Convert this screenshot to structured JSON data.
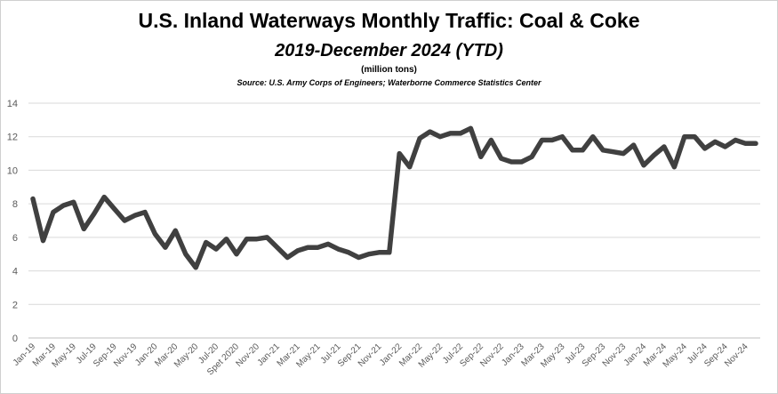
{
  "chart_data": {
    "type": "line",
    "title": "U.S. Inland Waterways Monthly Traffic:  Coal & Coke",
    "subtitle": "2019-December 2024 (YTD)",
    "units": "(million tons)",
    "source": "Source:  U.S. Army Corps of Engineers; Waterborne Commerce Statistics Center",
    "ylim": [
      0,
      14
    ],
    "yticks": [
      0,
      2,
      4,
      6,
      8,
      10,
      12,
      14
    ],
    "grid": true,
    "x_tick_labels": [
      "Jan-19",
      "Mar-19",
      "May-19",
      "Jul-19",
      "Sep-19",
      "Nov-19",
      "Jan-20",
      "Mar-20",
      "May-20",
      "Jul-20",
      "Spet 2020",
      "Nov-20",
      "Jan-21",
      "Mar-21",
      "May-21",
      "Jul-21",
      "Sep-21",
      "Nov-21",
      "Jan-22",
      "Mar-22",
      "May-22",
      "Jul-22",
      "Sep-22",
      "Nov-22",
      "Jan-23",
      "Mar-23",
      "May-23",
      "Jul-23",
      "Sep-23",
      "Nov-23",
      "Jan-24",
      "Mar-24",
      "May-24",
      "Jul-24",
      "Sep-24",
      "Nov-24"
    ],
    "series": [
      {
        "color": "#404040",
        "values": [
          8.3,
          5.8,
          7.5,
          7.9,
          8.1,
          6.5,
          7.4,
          8.4,
          7.7,
          7.0,
          7.3,
          7.5,
          6.2,
          5.4,
          6.4,
          5.0,
          4.2,
          5.7,
          5.3,
          5.9,
          5.0,
          5.9,
          5.9,
          6.0,
          5.4,
          4.8,
          5.2,
          5.4,
          5.4,
          5.6,
          5.3,
          5.1,
          4.8,
          5.0,
          5.1,
          5.1,
          11.0,
          10.2,
          11.9,
          12.3,
          12.0,
          12.2,
          12.2,
          12.5,
          10.8,
          11.8,
          10.7,
          10.5,
          10.5,
          10.8,
          11.8,
          11.8,
          12.0,
          11.2,
          11.2,
          12.0,
          11.2,
          11.1,
          11.0,
          11.5,
          10.3,
          10.9,
          11.4,
          10.2,
          12.0,
          12.0,
          11.3,
          11.7,
          11.4,
          11.8,
          11.6,
          11.6
        ]
      }
    ]
  }
}
